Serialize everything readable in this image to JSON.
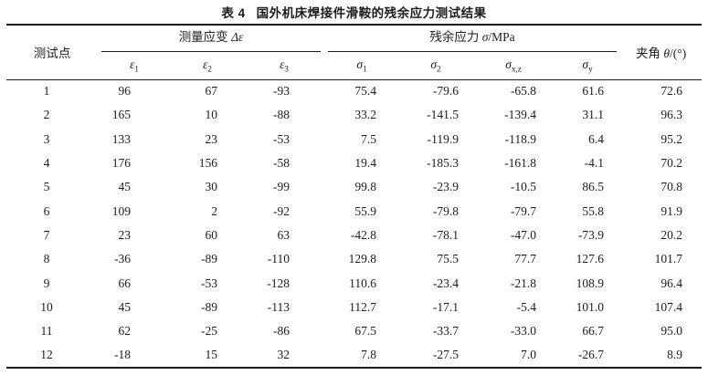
{
  "caption": {
    "label": "表 4",
    "title": "国外机床焊接件滑鞍的残余应力测试结果"
  },
  "table": {
    "columns": {
      "point": "测试点",
      "strain_group": {
        "prefix": "测量应变",
        "symbol": "Δε"
      },
      "stress_group": {
        "prefix": "残余应力",
        "symbol": "σ",
        "unit": "/MPa"
      },
      "angle": {
        "prefix": "夹角",
        "symbol": "θ",
        "unit": "/(°)"
      },
      "strain_subcols": [
        {
          "base": "ε",
          "sub": "1"
        },
        {
          "base": "ε",
          "sub": "2"
        },
        {
          "base": "ε",
          "sub": "3"
        }
      ],
      "stress_subcols": [
        {
          "base": "σ",
          "sub": "1"
        },
        {
          "base": "σ",
          "sub": "2"
        },
        {
          "base": "σ",
          "sub": "x,z"
        },
        {
          "base": "σ",
          "sub": "y"
        }
      ]
    },
    "rows": [
      [
        "1",
        "96",
        "67",
        "-93",
        "75.4",
        "-79.6",
        "-65.8",
        "61.6",
        "72.6"
      ],
      [
        "2",
        "165",
        "10",
        "-88",
        "33.2",
        "-141.5",
        "-139.4",
        "31.1",
        "96.3"
      ],
      [
        "3",
        "133",
        "23",
        "-53",
        "7.5",
        "-119.9",
        "-118.9",
        "6.4",
        "95.2"
      ],
      [
        "4",
        "176",
        "156",
        "-58",
        "19.4",
        "-185.3",
        "-161.8",
        "-4.1",
        "70.2"
      ],
      [
        "5",
        "45",
        "30",
        "-99",
        "99.8",
        "-23.9",
        "-10.5",
        "86.5",
        "70.8"
      ],
      [
        "6",
        "109",
        "2",
        "-92",
        "55.9",
        "-79.8",
        "-79.7",
        "55.8",
        "91.9"
      ],
      [
        "7",
        "23",
        "60",
        "63",
        "-42.8",
        "-78.1",
        "-47.0",
        "-73.9",
        "20.2"
      ],
      [
        "8",
        "-36",
        "-89",
        "-110",
        "129.8",
        "75.5",
        "77.7",
        "127.6",
        "101.7"
      ],
      [
        "9",
        "66",
        "-53",
        "-128",
        "110.6",
        "-23.4",
        "-21.8",
        "108.9",
        "96.4"
      ],
      [
        "10",
        "45",
        "-89",
        "-113",
        "112.7",
        "-17.1",
        "-5.4",
        "101.0",
        "107.4"
      ],
      [
        "11",
        "62",
        "-25",
        "-86",
        "67.5",
        "-33.7",
        "-33.0",
        "66.7",
        "95.0"
      ],
      [
        "12",
        "-18",
        "15",
        "32",
        "7.8",
        "-27.5",
        "7.0",
        "-26.7",
        "8.9"
      ]
    ]
  }
}
